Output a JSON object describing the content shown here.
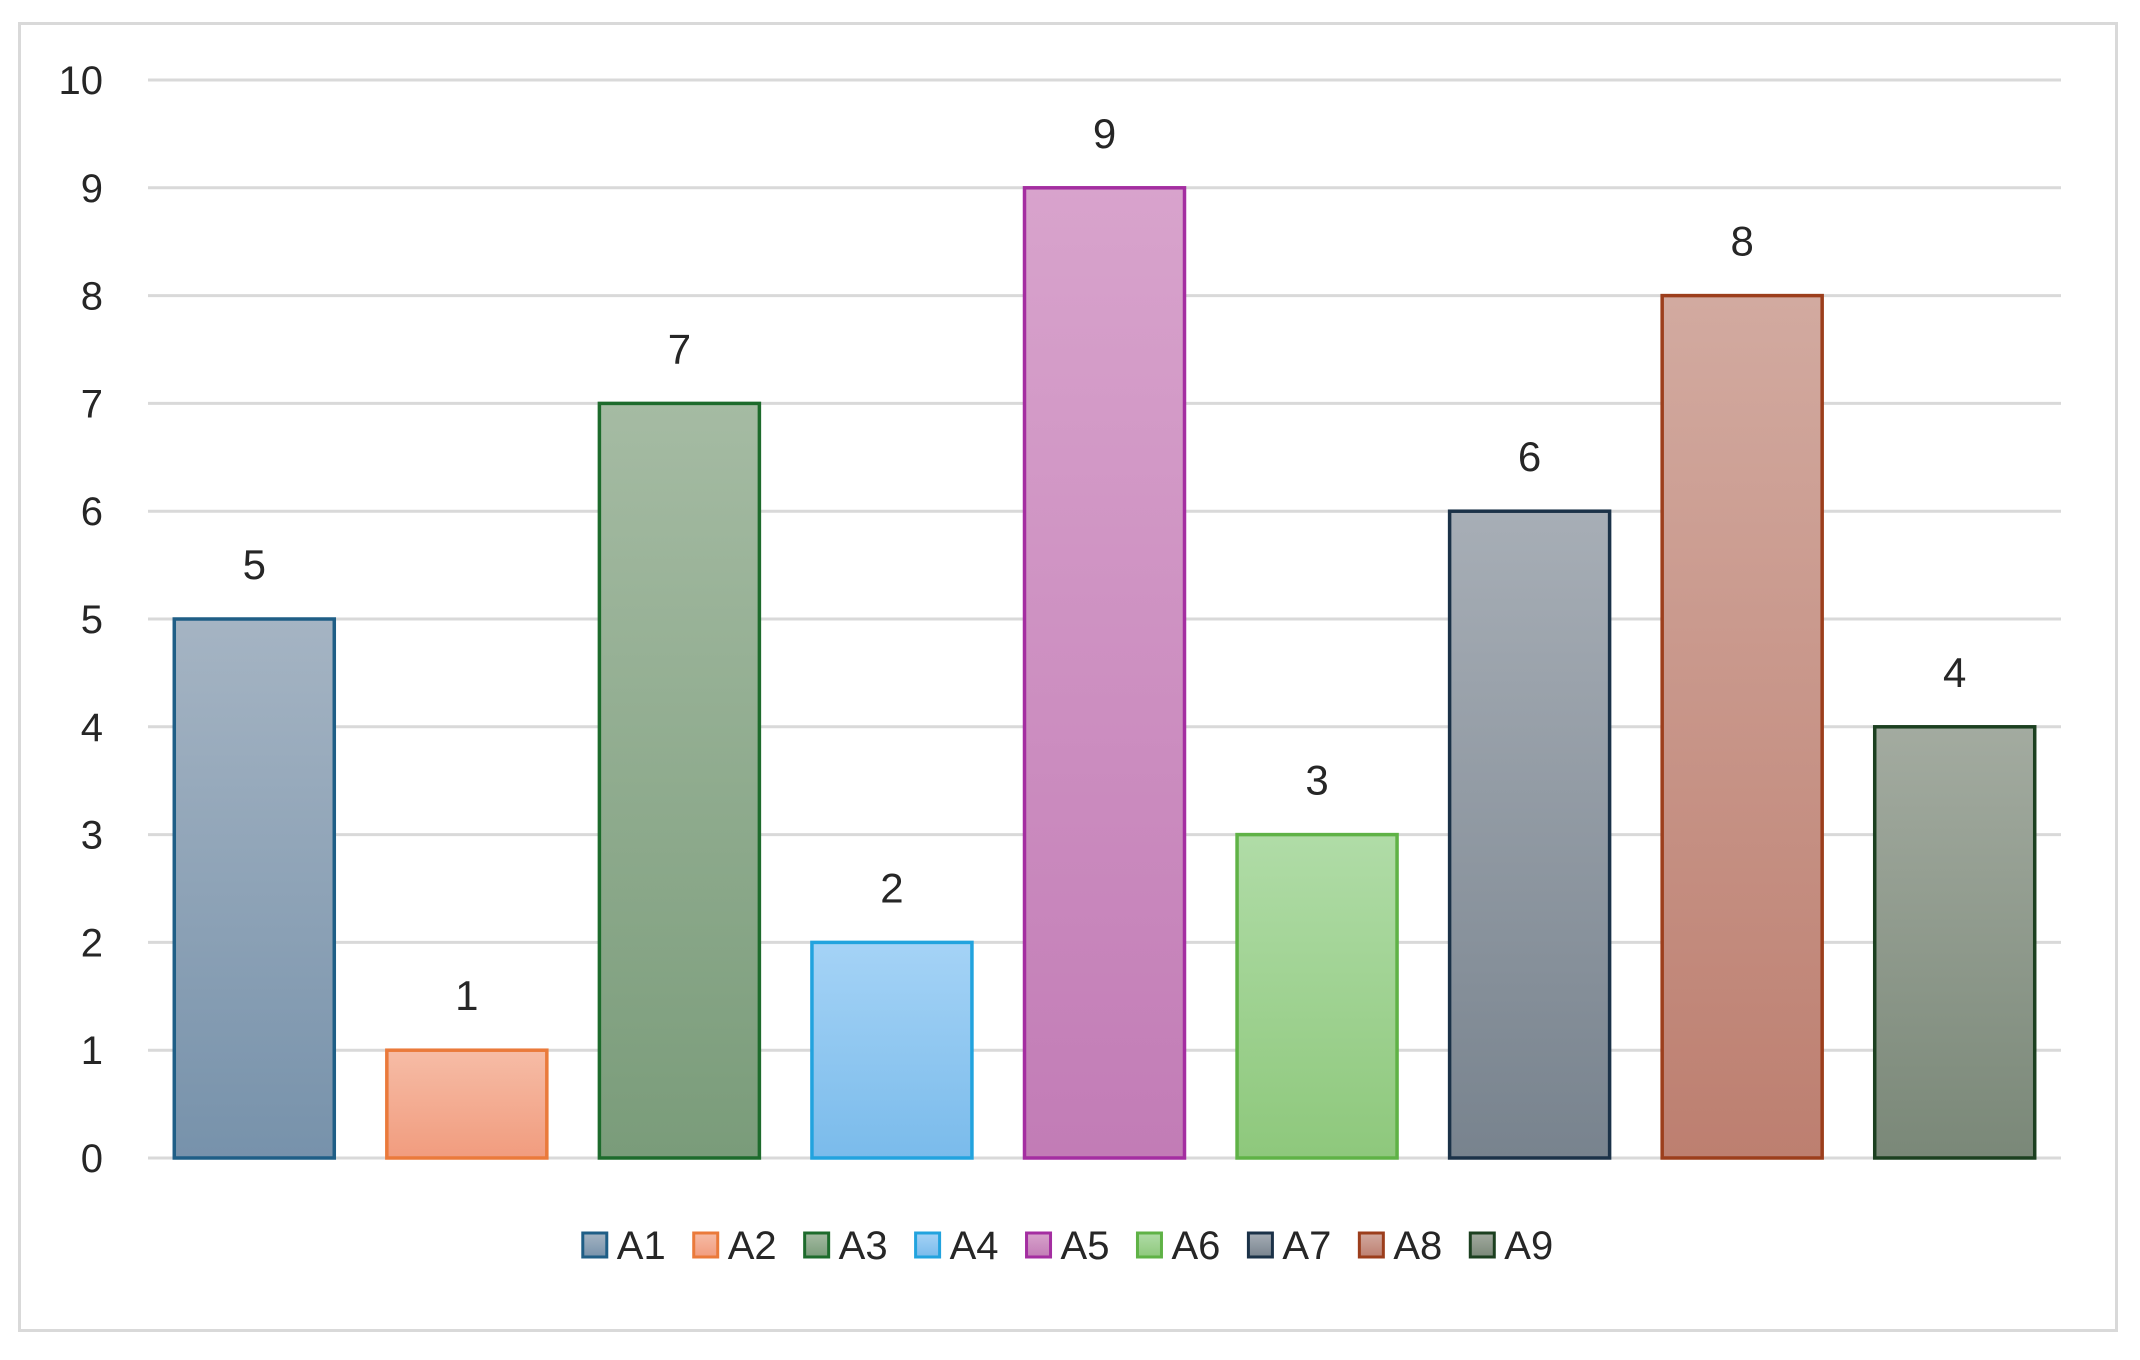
{
  "chart_data": {
    "type": "bar",
    "title": "",
    "xlabel": "",
    "ylabel": "",
    "categories": [
      "A1",
      "A2",
      "A3",
      "A4",
      "A5",
      "A6",
      "A7",
      "A8",
      "A9"
    ],
    "values": [
      5,
      1,
      7,
      2,
      9,
      3,
      6,
      8,
      4
    ],
    "ylim": [
      0,
      10
    ],
    "yticks": [
      "0",
      "1",
      "2",
      "3",
      "4",
      "5",
      "6",
      "7",
      "8",
      "9",
      "10"
    ],
    "grid": true,
    "data_labels": true,
    "legend_position": "bottom",
    "colors": [
      {
        "top": "#a5b4c3",
        "bottom": "#7792ab",
        "stroke": "#1f5e86"
      },
      {
        "top": "#f6bca6",
        "bottom": "#f19c7e",
        "stroke": "#ea7a3b"
      },
      {
        "top": "#a5bba3",
        "bottom": "#7a9c7a",
        "stroke": "#1d6b2c"
      },
      {
        "top": "#a5d3f6",
        "bottom": "#7abbeb",
        "stroke": "#22a3de"
      },
      {
        "top": "#d8a3cc",
        "bottom": "#c27cb6",
        "stroke": "#a42ea1"
      },
      {
        "top": "#b0dca7",
        "bottom": "#8ec87c",
        "stroke": "#5fb246"
      },
      {
        "top": "#a7aeb6",
        "bottom": "#78838e",
        "stroke": "#1b3248"
      },
      {
        "top": "#d2aaa0",
        "bottom": "#bd7f70",
        "stroke": "#9c3e1c"
      },
      {
        "top": "#a3aba0",
        "bottom": "#7a8878",
        "stroke": "#1c4020"
      }
    ]
  }
}
